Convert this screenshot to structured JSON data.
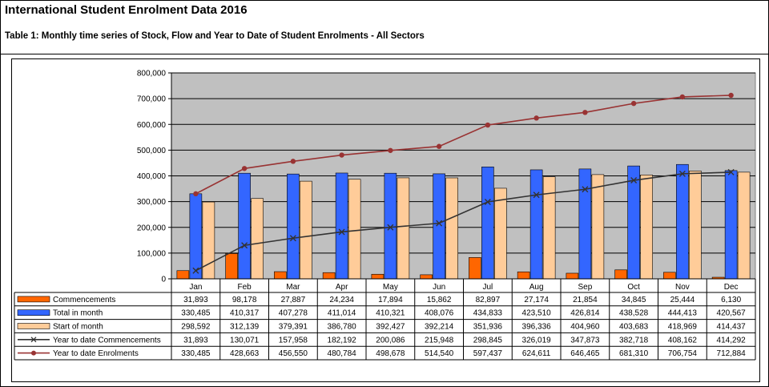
{
  "title": "International Student Enrolment Data 2016",
  "subtitle": "Table 1: Monthly time series of Stock, Flow and Year to Date of Student Enrolments - All Sectors",
  "colors": {
    "plot_bg": "#c0c0c0",
    "commencements": "#ff6600",
    "total_in_month": "#3366ff",
    "start_of_month": "#ffcc99",
    "ytd_commencements": "#333333",
    "ytd_enrolments": "#993333"
  },
  "chart_data": {
    "type": "bar",
    "categories": [
      "Jan",
      "Feb",
      "Mar",
      "Apr",
      "May",
      "Jun",
      "Jul",
      "Aug",
      "Sep",
      "Oct",
      "Nov",
      "Dec"
    ],
    "ylim": [
      0,
      800000
    ],
    "yticks": [
      0,
      100000,
      200000,
      300000,
      400000,
      500000,
      600000,
      700000,
      800000
    ],
    "ytick_labels": [
      "0",
      "100,000",
      "200,000",
      "300,000",
      "400,000",
      "500,000",
      "600,000",
      "700,000",
      "800,000"
    ],
    "grid": true,
    "legend": "data-table-left",
    "series": [
      {
        "name": "Commencements",
        "kind": "bar",
        "values": [
          31893,
          98178,
          27887,
          24234,
          17894,
          15862,
          82897,
          27174,
          21854,
          34845,
          25444,
          6130
        ],
        "labels": [
          "31,893",
          "98,178",
          "27,887",
          "24,234",
          "17,894",
          "15,862",
          "82,897",
          "27,174",
          "21,854",
          "34,845",
          "25,444",
          "6,130"
        ]
      },
      {
        "name": "Total in month",
        "kind": "bar",
        "values": [
          330485,
          410317,
          407278,
          411014,
          410321,
          408076,
          434833,
          423510,
          426814,
          438528,
          444413,
          420567
        ],
        "labels": [
          "330,485",
          "410,317",
          "407,278",
          "411,014",
          "410,321",
          "408,076",
          "434,833",
          "423,510",
          "426,814",
          "438,528",
          "444,413",
          "420,567"
        ]
      },
      {
        "name": "Start of month",
        "kind": "bar",
        "values": [
          298592,
          312139,
          379391,
          386780,
          392427,
          392214,
          351936,
          396336,
          404960,
          403683,
          418969,
          414437
        ],
        "labels": [
          "298,592",
          "312,139",
          "379,391",
          "386,780",
          "392,427",
          "392,214",
          "351,936",
          "396,336",
          "404,960",
          "403,683",
          "418,969",
          "414,437"
        ]
      },
      {
        "name": "Year to date Commencements",
        "kind": "line",
        "values": [
          31893,
          130071,
          157958,
          182192,
          200086,
          215948,
          298845,
          326019,
          347873,
          382718,
          408162,
          414292
        ],
        "labels": [
          "31,893",
          "130,071",
          "157,958",
          "182,192",
          "200,086",
          "215,948",
          "298,845",
          "326,019",
          "347,873",
          "382,718",
          "408,162",
          "414,292"
        ]
      },
      {
        "name": "Year to date Enrolments",
        "kind": "line",
        "values": [
          330485,
          428663,
          456550,
          480784,
          498678,
          514540,
          597437,
          624611,
          646465,
          681310,
          706754,
          712884
        ],
        "labels": [
          "330,485",
          "428,663",
          "456,550",
          "480,784",
          "498,678",
          "514,540",
          "597,437",
          "624,611",
          "646,465",
          "681,310",
          "706,754",
          "712,884"
        ]
      }
    ]
  }
}
